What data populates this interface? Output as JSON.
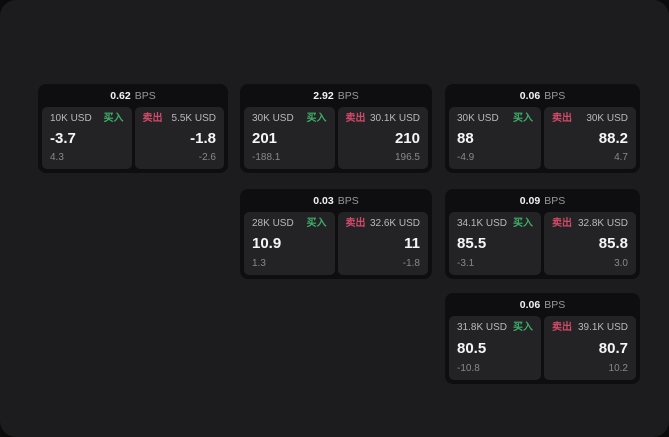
{
  "labels": {
    "buy": "买入",
    "sell": "卖出",
    "bps_unit": "BPS"
  },
  "colors": {
    "page_bg": "#1c1c1e",
    "card_bg": "#0e0e10",
    "panel_bg": "#232326",
    "buy_accent": "#3fae68",
    "sell_accent": "#d04a68"
  },
  "cards": [
    {
      "bps": "0.62",
      "buy": {
        "amount": "10K USD",
        "value": "-3.7",
        "sub": "4.3"
      },
      "sell": {
        "amount": "5.5K USD",
        "value": "-1.8",
        "sub": "-2.6"
      }
    },
    {
      "bps": "2.92",
      "buy": {
        "amount": "30K USD",
        "value": "201",
        "sub": "-188.1"
      },
      "sell": {
        "amount": "30.1K USD",
        "value": "210",
        "sub": "196.5"
      }
    },
    {
      "bps": "0.06",
      "buy": {
        "amount": "30K USD",
        "value": "88",
        "sub": "-4.9"
      },
      "sell": {
        "amount": "30K USD",
        "value": "88.2",
        "sub": "4.7"
      }
    },
    {
      "bps": "0.03",
      "buy": {
        "amount": "28K USD",
        "value": "10.9",
        "sub": "1.3"
      },
      "sell": {
        "amount": "32.6K USD",
        "value": "11",
        "sub": "-1.8"
      }
    },
    {
      "bps": "0.09",
      "buy": {
        "amount": "34.1K USD",
        "value": "85.5",
        "sub": "-3.1"
      },
      "sell": {
        "amount": "32.8K USD",
        "value": "85.8",
        "sub": "3.0"
      }
    },
    {
      "bps": "0.06",
      "buy": {
        "amount": "31.8K USD",
        "value": "80.5",
        "sub": "-10.8"
      },
      "sell": {
        "amount": "39.1K USD",
        "value": "80.7",
        "sub": "10.2"
      }
    }
  ]
}
